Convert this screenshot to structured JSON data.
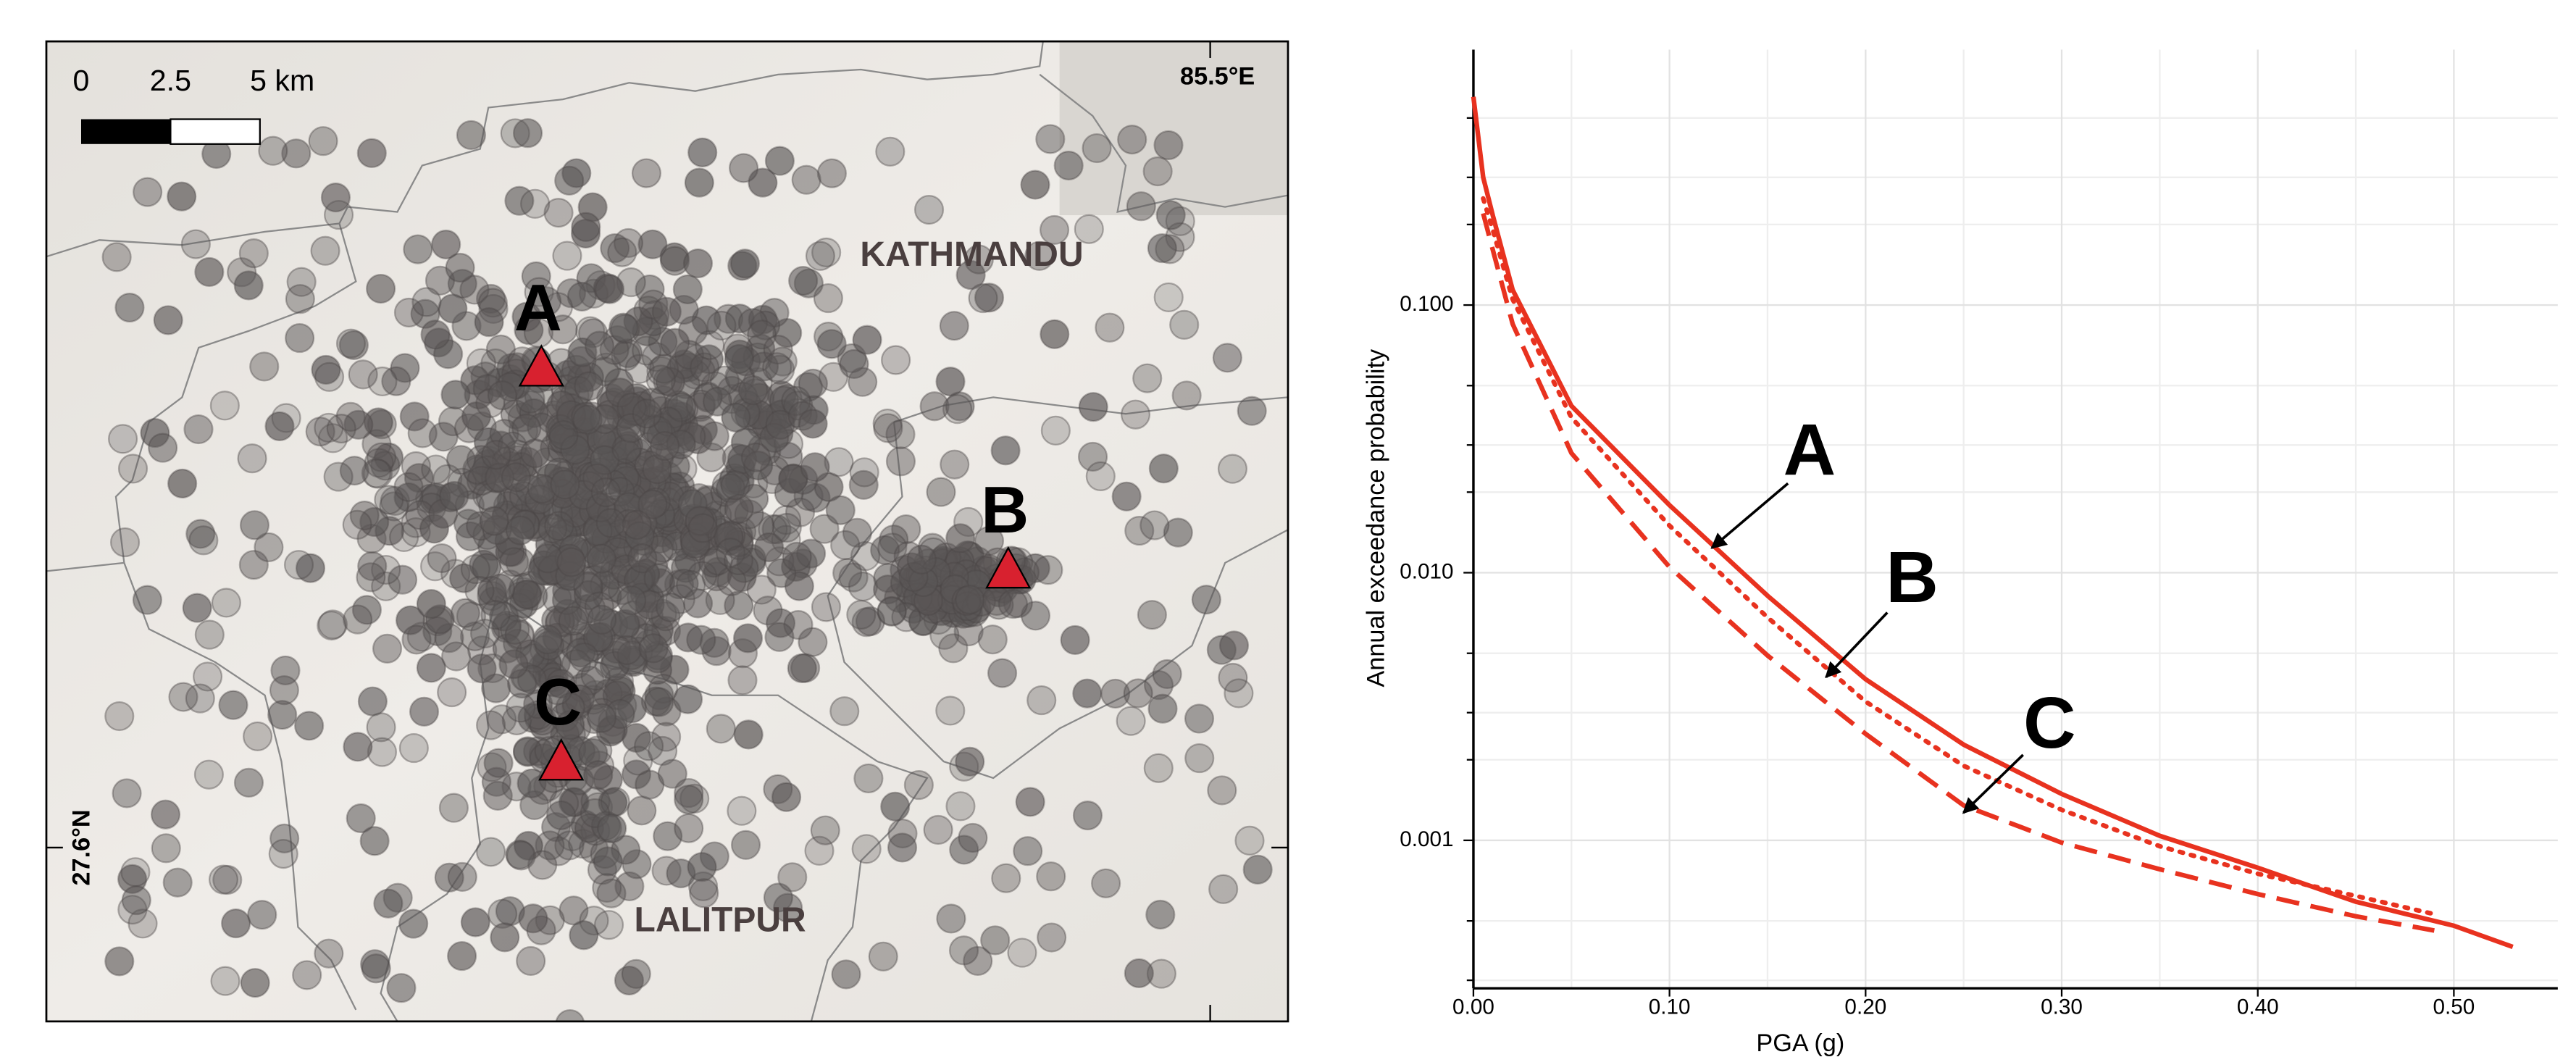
{
  "map": {
    "scale_labels": [
      "0",
      "2.5",
      "5 km"
    ],
    "lon_label": "85.5°E",
    "lat_label": "27.6°N",
    "places": [
      "KATHMANDU",
      "LALITPUR"
    ],
    "sites": [
      "A",
      "B",
      "C"
    ]
  },
  "chart_data": {
    "type": "line",
    "xlabel": "PGA (g)",
    "ylabel": "Annual exceedance probability",
    "xlim": [
      0,
      0.553
    ],
    "ylim": [
      0.00028,
      0.9
    ],
    "log_y": true,
    "grid": true,
    "xticks": [
      {
        "value": 0,
        "label": "0.00"
      },
      {
        "value": 0.1,
        "label": "0.10"
      },
      {
        "value": 0.2,
        "label": "0.20"
      },
      {
        "value": 0.3,
        "label": "0.30"
      },
      {
        "value": 0.4,
        "label": "0.40"
      },
      {
        "value": 0.5,
        "label": "0.50"
      }
    ],
    "xminorticks": [
      0.05,
      0.15,
      0.25,
      0.35,
      0.45
    ],
    "yticks": [
      {
        "value": 0.001,
        "label": "0.001"
      },
      {
        "value": 0.01,
        "label": "0.010"
      },
      {
        "value": 0.1,
        "label": "0.100"
      }
    ],
    "yminorticks": [
      0.0003,
      0.0005,
      0.002,
      0.003,
      0.005,
      0.02,
      0.03,
      0.05,
      0.2,
      0.3,
      0.5
    ],
    "series": [
      {
        "name": "A",
        "color": "#e8321f",
        "dash": "solid",
        "x": [
          0,
          0.005,
          0.01,
          0.02,
          0.05,
          0.1,
          0.15,
          0.2,
          0.25,
          0.3,
          0.35,
          0.4,
          0.45,
          0.5,
          0.53
        ],
        "values": [
          0.6,
          0.3,
          0.215,
          0.114,
          0.042,
          0.0179,
          0.0082,
          0.004,
          0.00228,
          0.00149,
          0.00104,
          0.00079,
          0.00059,
          0.00048,
          0.0004
        ]
      },
      {
        "name": "B",
        "color": "#e8321f",
        "dash": "dotted",
        "x": [
          0.005,
          0.01,
          0.02,
          0.05,
          0.1,
          0.15,
          0.2,
          0.25,
          0.3,
          0.35,
          0.4,
          0.45,
          0.49
        ],
        "values": [
          0.25,
          0.19,
          0.105,
          0.038,
          0.015,
          0.0068,
          0.0033,
          0.0019,
          0.0013,
          0.00095,
          0.00075,
          0.00062,
          0.00053
        ]
      },
      {
        "name": "C",
        "color": "#e8321f",
        "dash": "dashed",
        "x": [
          0.005,
          0.01,
          0.02,
          0.05,
          0.1,
          0.15,
          0.2,
          0.25,
          0.3,
          0.35,
          0.4,
          0.45,
          0.49
        ],
        "values": [
          0.22,
          0.16,
          0.085,
          0.028,
          0.0105,
          0.0049,
          0.0025,
          0.00135,
          0.00098,
          0.00078,
          0.00063,
          0.00052,
          0.00046
        ]
      }
    ],
    "annotations": [
      "A",
      "B",
      "C"
    ]
  }
}
